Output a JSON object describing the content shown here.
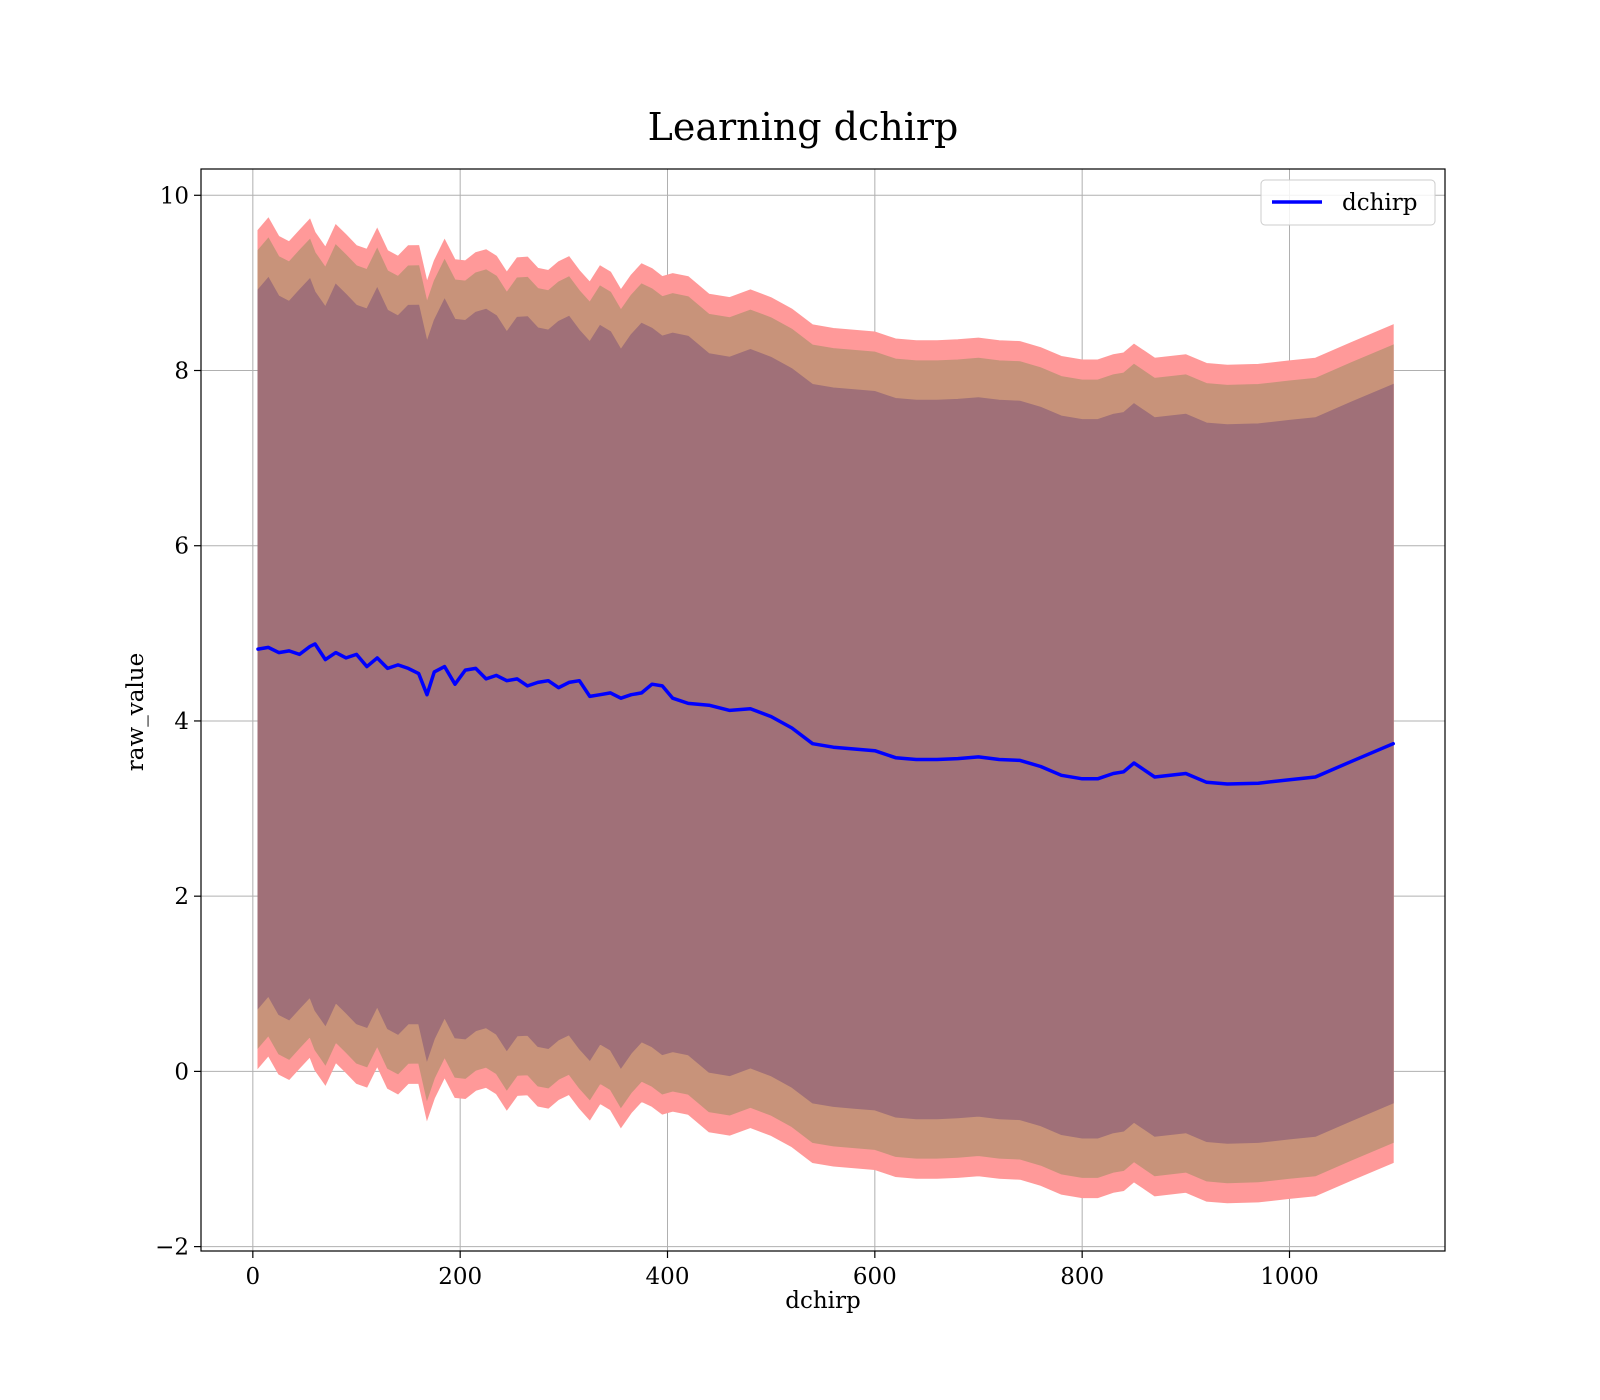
{
  "chart_data": {
    "type": "line",
    "title": "Learning dchirp",
    "xlabel": "dchirp",
    "ylabel": "raw_value",
    "xlim": [
      -50,
      1150
    ],
    "ylim": [
      -2.05,
      10.3
    ],
    "xticks": [
      0,
      200,
      400,
      600,
      800,
      1000
    ],
    "yticks": [
      -2,
      0,
      2,
      4,
      6,
      8,
      10
    ],
    "xtick_labels": [
      "0",
      "200",
      "400",
      "600",
      "800",
      "1000"
    ],
    "ytick_labels": [
      "−2",
      "0",
      "2",
      "4",
      "6",
      "8",
      "10"
    ],
    "grid": true,
    "legend": {
      "position": "top-right",
      "entries": [
        "dchirp"
      ]
    },
    "colors": {
      "line": "#0000ff",
      "band_outer": "#ff9999",
      "band_middle": "#c8937a",
      "band_inner": "#a07078",
      "grid": "#b0b0b0"
    },
    "series": [
      {
        "name": "dchirp",
        "x": [
          5,
          15,
          25,
          35,
          45,
          55,
          60,
          70,
          80,
          90,
          100,
          110,
          120,
          130,
          140,
          150,
          160,
          168,
          175,
          185,
          195,
          205,
          215,
          225,
          235,
          245,
          255,
          265,
          275,
          285,
          295,
          305,
          315,
          325,
          335,
          345,
          355,
          365,
          375,
          385,
          395,
          405,
          420,
          440,
          460,
          480,
          500,
          520,
          540,
          560,
          580,
          600,
          620,
          640,
          660,
          680,
          700,
          720,
          740,
          760,
          780,
          800,
          815,
          830,
          840,
          850,
          870,
          900,
          920,
          940,
          970,
          1000,
          1025,
          1060,
          1100
        ],
        "y": [
          4.82,
          4.84,
          4.78,
          4.8,
          4.76,
          4.85,
          4.88,
          4.7,
          4.78,
          4.72,
          4.76,
          4.62,
          4.72,
          4.6,
          4.64,
          4.6,
          4.54,
          4.3,
          4.56,
          4.62,
          4.42,
          4.58,
          4.6,
          4.48,
          4.52,
          4.46,
          4.48,
          4.4,
          4.44,
          4.46,
          4.38,
          4.44,
          4.46,
          4.28,
          4.3,
          4.32,
          4.26,
          4.3,
          4.32,
          4.42,
          4.4,
          4.26,
          4.2,
          4.18,
          4.12,
          4.14,
          4.05,
          3.92,
          3.74,
          3.7,
          3.68,
          3.66,
          3.58,
          3.56,
          3.56,
          3.57,
          3.59,
          3.56,
          3.55,
          3.48,
          3.38,
          3.34,
          3.34,
          3.4,
          3.42,
          3.52,
          3.36,
          3.4,
          3.3,
          3.28,
          3.29,
          3.33,
          3.36,
          3.54,
          3.74
        ]
      }
    ],
    "bands": [
      {
        "label": "outer",
        "half_width": 4.78,
        "color": "#ff9999"
      },
      {
        "label": "middle",
        "half_width": 4.55,
        "color": "#c8937a"
      },
      {
        "label": "inner",
        "half_width": 4.1,
        "color": "#a07078"
      }
    ]
  }
}
